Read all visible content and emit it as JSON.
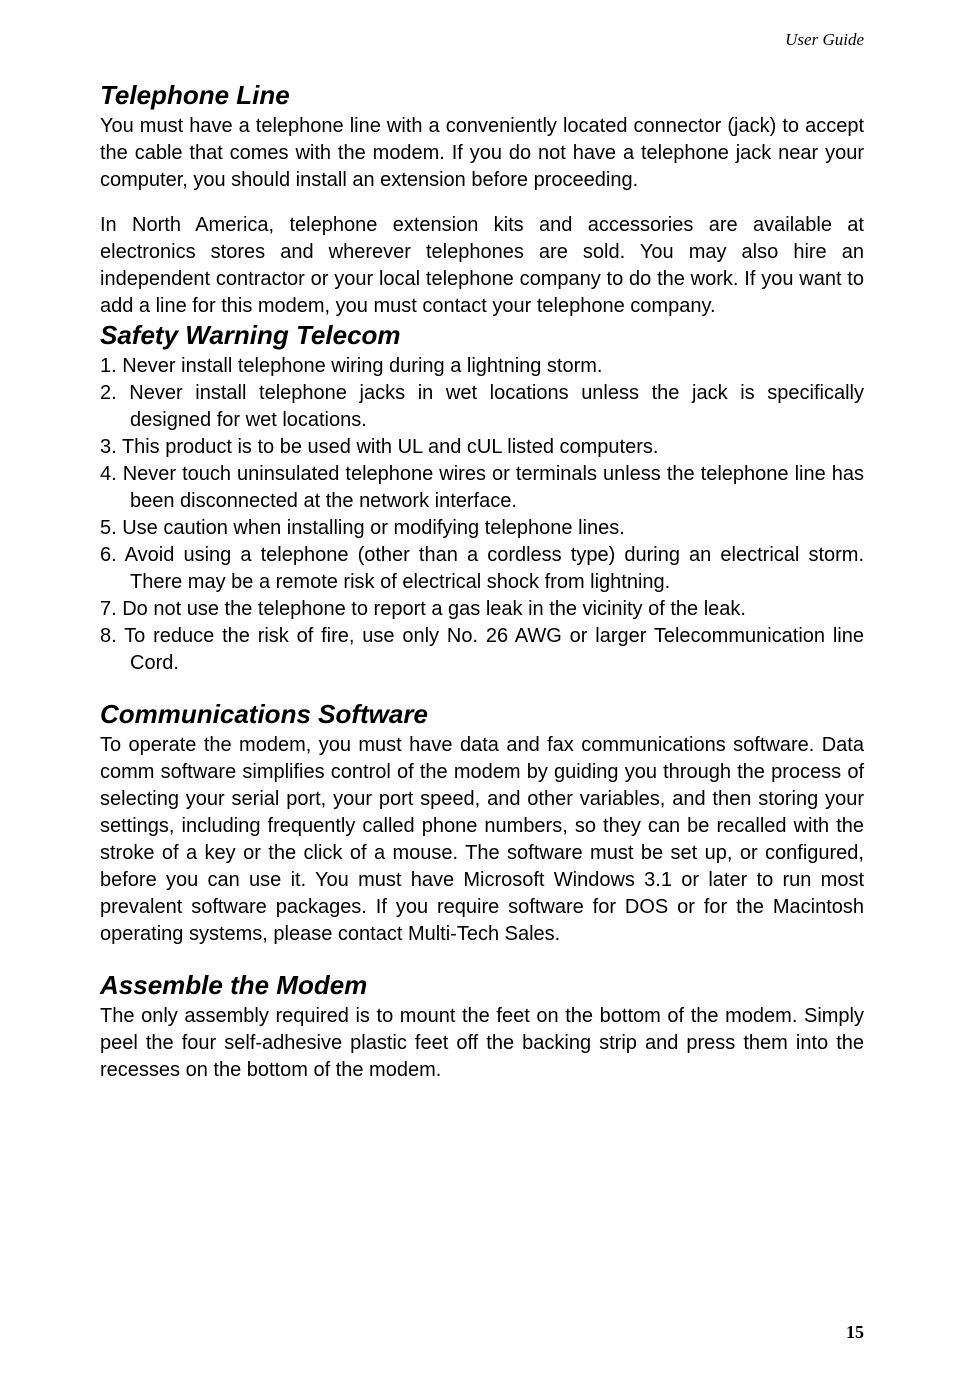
{
  "header": {
    "text": "User Guide"
  },
  "sections": {
    "telephone_line": {
      "heading": "Telephone Line",
      "paragraph1": "You must have a telephone line with a conveniently located connector (jack) to accept the cable that comes with the modem. If you do not have a telephone jack near your computer, you should install an extension before proceeding.",
      "paragraph2": "In North America, telephone extension kits and accessories are available at electronics stores and wherever telephones are sold. You may also hire an independent contractor or your local telephone company to do the work. If you want to add a line for this modem, you must contact your telephone company."
    },
    "safety_warning": {
      "heading": "Safety Warning Telecom",
      "items": [
        "1. Never install telephone wiring during a lightning storm.",
        "2. Never install telephone jacks in wet locations unless the jack is specifically designed for wet locations.",
        "3. This product is to be used with UL and cUL listed computers.",
        "4. Never touch uninsulated telephone wires or terminals unless the telephone line has been disconnected at the network interface.",
        "5. Use caution when installing or modifying telephone lines.",
        "6. Avoid using a telephone (other than a cordless type) during an electrical storm.  There may be a remote risk of electrical shock from lightning.",
        "7. Do not use the telephone to report a gas leak in the vicinity of the leak.",
        "8. To reduce the risk of fire, use only No. 26 AWG or larger Telecommunication line Cord."
      ]
    },
    "communications_software": {
      "heading": "Communications Software",
      "paragraph": "To operate the modem, you must have data and fax communications software. Data comm  software simplifies control of the modem by guiding you through the process of selecting your serial port, your port speed, and other variables, and then storing your settings, including frequently called phone numbers, so they can be recalled with the stroke of a key or the click of a mouse. The software must be set up, or configured, before you can use it.   You must have Microsoft Windows 3.1 or later to run most prevalent software packages. If you require software for DOS or for the Macintosh operating systems, please contact Multi-Tech Sales."
    },
    "assemble_modem": {
      "heading": "Assemble the Modem",
      "paragraph": "The only assembly required is to mount the feet on the bottom of the modem. Simply peel the four self-adhesive plastic feet off the backing strip and press them into the recesses on the bottom of the modem."
    }
  },
  "page_number": "15",
  "styles": {
    "background_color": "#ffffff",
    "text_color": "#000000",
    "heading_fontsize": 26,
    "body_fontsize": 20,
    "header_fontsize": 17,
    "page_number_fontsize": 18
  }
}
